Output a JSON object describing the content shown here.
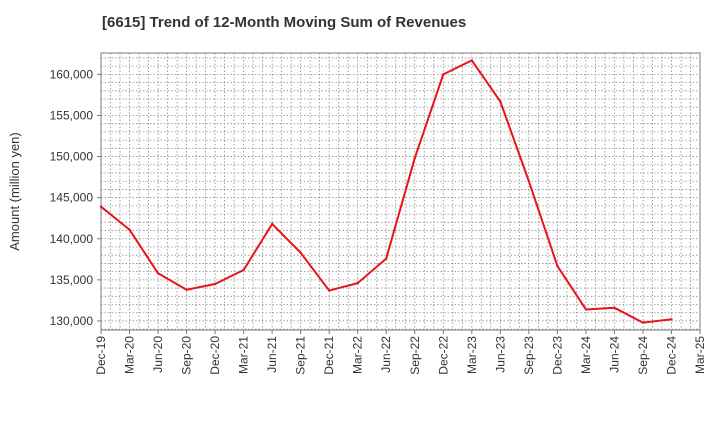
{
  "chart_data": {
    "type": "line",
    "title": "[6615]  Trend of 12-Month Moving Sum of Revenues",
    "xlabel": "",
    "ylabel": "Amount (million yen)",
    "ylim": [
      128900,
      162600
    ],
    "yticks": [
      130000,
      135000,
      140000,
      145000,
      150000,
      155000,
      160000
    ],
    "ytick_labels": [
      "130,000",
      "135,000",
      "140,000",
      "145,000",
      "150,000",
      "155,000",
      "160,000"
    ],
    "xtick_labels": [
      "Dec-19",
      "Mar-20",
      "Jun-20",
      "Sep-20",
      "Dec-20",
      "Mar-21",
      "Jun-21",
      "Sep-21",
      "Dec-21",
      "Mar-22",
      "Jun-22",
      "Sep-22",
      "Dec-22",
      "Mar-23",
      "Jun-23",
      "Sep-23",
      "Dec-23",
      "Mar-24",
      "Jun-24",
      "Sep-24",
      "Dec-24",
      "Mar-25"
    ],
    "grid": true,
    "series": [
      {
        "color": "#e8141c",
        "x": [
          "Dec-19",
          "Mar-20",
          "Jun-20",
          "Sep-20",
          "Dec-20",
          "Mar-21",
          "Jun-21",
          "Sep-21",
          "Dec-21",
          "Mar-22",
          "Jun-22",
          "Sep-22",
          "Dec-22",
          "Mar-23",
          "Jun-23",
          "Sep-23",
          "Dec-23",
          "Mar-24",
          "Jun-24",
          "Sep-24",
          "Dec-24"
        ],
        "values": [
          143900,
          141100,
          135800,
          133800,
          134500,
          136200,
          141800,
          138300,
          133700,
          134600,
          137600,
          149800,
          160000,
          161700,
          156700,
          147000,
          136700,
          131400,
          131600,
          129800,
          130200
        ]
      }
    ]
  }
}
